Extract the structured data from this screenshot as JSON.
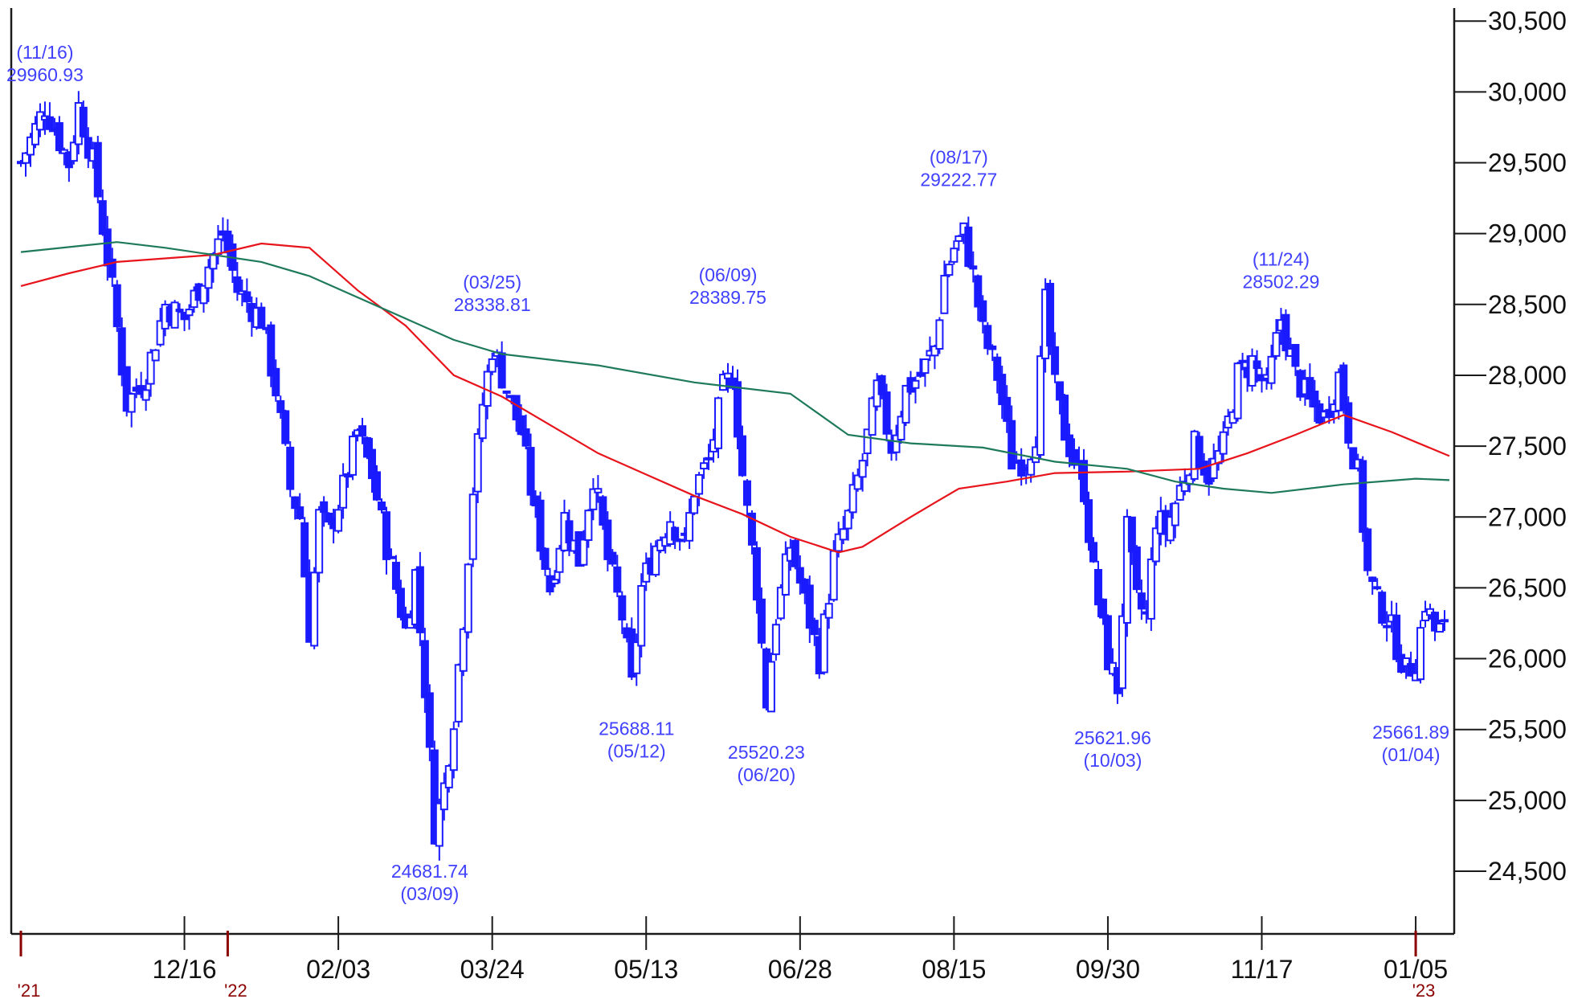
{
  "chart_data": {
    "type": "candlestick",
    "title": "",
    "xlabel": "",
    "ylabel": "",
    "ylim": [
      24000,
      30600
    ],
    "y_ticks": [
      24500,
      25000,
      25500,
      26000,
      26500,
      27000,
      27500,
      28000,
      28500,
      29000,
      29500,
      30000,
      30500
    ],
    "y_tick_labels": [
      "24,500",
      "25,000",
      "25,500",
      "26,000",
      "26,500",
      "27,000",
      "27,500",
      "28,000",
      "28,500",
      "29,000",
      "29,500",
      "30,000",
      "30,500"
    ],
    "x_ticks": [
      {
        "label": "12/16",
        "idx": 34
      },
      {
        "label": "02/03",
        "idx": 66
      },
      {
        "label": "03/24",
        "idx": 98
      },
      {
        "label": "05/13",
        "idx": 130
      },
      {
        "label": "06/28",
        "idx": 162
      },
      {
        "label": "08/15",
        "idx": 194
      },
      {
        "label": "09/30",
        "idx": 226
      },
      {
        "label": "11/17",
        "idx": 258
      },
      {
        "label": "01/05",
        "idx": 290
      }
    ],
    "year_markers": [
      {
        "label": "'21",
        "idx": 0
      },
      {
        "label": "'22",
        "idx": 43
      },
      {
        "label": "'23",
        "idx": 290
      }
    ],
    "num_bars": 297,
    "annotations": [
      {
        "date": "(11/16)",
        "value": "29960.93",
        "idx": 5,
        "price": 29960.93,
        "pos": "above"
      },
      {
        "date": "(03/09)",
        "value": "24681.74",
        "idx": 85,
        "price": 24681.74,
        "pos": "below"
      },
      {
        "date": "(03/25)",
        "value": "28338.81",
        "idx": 98,
        "price": 28338.81,
        "pos": "above"
      },
      {
        "date": "(05/12)",
        "value": "25688.11",
        "idx": 128,
        "price": 25688.11,
        "pos": "below"
      },
      {
        "date": "(06/09)",
        "value": "28389.75",
        "idx": 147,
        "price": 28389.75,
        "pos": "above"
      },
      {
        "date": "(06/20)",
        "value": "25520.23",
        "idx": 155,
        "price": 25520.23,
        "pos": "below"
      },
      {
        "date": "(08/17)",
        "value": "29222.77",
        "idx": 195,
        "price": 29222.77,
        "pos": "above"
      },
      {
        "date": "(10/03)",
        "value": "25621.96",
        "idx": 227,
        "price": 25621.96,
        "pos": "below"
      },
      {
        "date": "(11/24)",
        "value": "28502.29",
        "idx": 262,
        "price": 28502.29,
        "pos": "above"
      },
      {
        "date": "(01/04)",
        "value": "25661.89",
        "idx": 289,
        "price": 25661.89,
        "pos": "below"
      }
    ],
    "close_path": [
      [
        0,
        29500
      ],
      [
        5,
        29900
      ],
      [
        10,
        29500
      ],
      [
        12,
        29900
      ],
      [
        15,
        29500
      ],
      [
        19,
        28600
      ],
      [
        22,
        27800
      ],
      [
        26,
        28000
      ],
      [
        30,
        28500
      ],
      [
        34,
        28400
      ],
      [
        38,
        28700
      ],
      [
        42,
        29000
      ],
      [
        45,
        28600
      ],
      [
        50,
        28400
      ],
      [
        53,
        27900
      ],
      [
        56,
        27200
      ],
      [
        58,
        27000
      ],
      [
        60,
        26200
      ],
      [
        62,
        27000
      ],
      [
        64,
        26900
      ],
      [
        67,
        27200
      ],
      [
        70,
        27600
      ],
      [
        73,
        27300
      ],
      [
        76,
        26800
      ],
      [
        78,
        26500
      ],
      [
        80,
        26200
      ],
      [
        82,
        26600
      ],
      [
        84,
        25800
      ],
      [
        86,
        24800
      ],
      [
        88,
        25100
      ],
      [
        90,
        25600
      ],
      [
        92,
        26300
      ],
      [
        94,
        27200
      ],
      [
        96,
        27800
      ],
      [
        98,
        28200
      ],
      [
        101,
        27900
      ],
      [
        104,
        27600
      ],
      [
        107,
        27000
      ],
      [
        110,
        26500
      ],
      [
        113,
        27000
      ],
      [
        116,
        26700
      ],
      [
        119,
        27300
      ],
      [
        122,
        26700
      ],
      [
        125,
        26300
      ],
      [
        127,
        25800
      ],
      [
        129,
        26500
      ],
      [
        132,
        26800
      ],
      [
        135,
        27000
      ],
      [
        138,
        26800
      ],
      [
        140,
        27200
      ],
      [
        143,
        27400
      ],
      [
        146,
        27900
      ],
      [
        148,
        28000
      ],
      [
        150,
        27300
      ],
      [
        153,
        26500
      ],
      [
        155,
        25700
      ],
      [
        157,
        26300
      ],
      [
        160,
        26800
      ],
      [
        163,
        26400
      ],
      [
        166,
        26000
      ],
      [
        169,
        26700
      ],
      [
        172,
        27000
      ],
      [
        175,
        27400
      ],
      [
        178,
        27900
      ],
      [
        181,
        27500
      ],
      [
        184,
        27900
      ],
      [
        187,
        28000
      ],
      [
        190,
        28200
      ],
      [
        192,
        28700
      ],
      [
        194,
        28900
      ],
      [
        196,
        29000
      ],
      [
        198,
        28700
      ],
      [
        200,
        28300
      ],
      [
        203,
        28000
      ],
      [
        206,
        27400
      ],
      [
        209,
        27400
      ],
      [
        211,
        27600
      ],
      [
        213,
        28500
      ],
      [
        215,
        27900
      ],
      [
        217,
        27600
      ],
      [
        219,
        27400
      ],
      [
        221,
        27200
      ],
      [
        223,
        26600
      ],
      [
        226,
        26000
      ],
      [
        228,
        25800
      ],
      [
        230,
        26900
      ],
      [
        232,
        26400
      ],
      [
        234,
        26300
      ],
      [
        236,
        27000
      ],
      [
        238,
        26900
      ],
      [
        241,
        27200
      ],
      [
        244,
        27500
      ],
      [
        247,
        27300
      ],
      [
        250,
        27500
      ],
      [
        253,
        28000
      ],
      [
        256,
        28100
      ],
      [
        259,
        27900
      ],
      [
        262,
        28400
      ],
      [
        265,
        28000
      ],
      [
        268,
        27800
      ],
      [
        271,
        27700
      ],
      [
        274,
        28000
      ],
      [
        276,
        27600
      ],
      [
        278,
        27300
      ],
      [
        280,
        26600
      ],
      [
        282,
        26400
      ],
      [
        284,
        26300
      ],
      [
        286,
        26100
      ],
      [
        288,
        25900
      ],
      [
        290,
        26000
      ],
      [
        292,
        26400
      ],
      [
        294,
        26200
      ]
    ],
    "series": [
      {
        "type": "line",
        "color": "#e8141c",
        "points": [
          [
            0,
            28630
          ],
          [
            10,
            28720
          ],
          [
            20,
            28800
          ],
          [
            40,
            28850
          ],
          [
            50,
            28930
          ],
          [
            60,
            28900
          ],
          [
            70,
            28600
          ],
          [
            80,
            28350
          ],
          [
            90,
            28000
          ],
          [
            100,
            27850
          ],
          [
            110,
            27650
          ],
          [
            120,
            27450
          ],
          [
            130,
            27300
          ],
          [
            140,
            27150
          ],
          [
            150,
            27020
          ],
          [
            160,
            26860
          ],
          [
            170,
            26750
          ],
          [
            175,
            26790
          ],
          [
            185,
            27000
          ],
          [
            190,
            27100
          ],
          [
            195,
            27200
          ],
          [
            205,
            27250
          ],
          [
            215,
            27310
          ],
          [
            230,
            27320
          ],
          [
            245,
            27340
          ],
          [
            255,
            27450
          ],
          [
            265,
            27580
          ],
          [
            275,
            27720
          ],
          [
            285,
            27600
          ],
          [
            297,
            27430
          ]
        ]
      },
      {
        "type": "line",
        "color": "#1e7a5a",
        "points": [
          [
            0,
            28870
          ],
          [
            20,
            28940
          ],
          [
            30,
            28900
          ],
          [
            50,
            28800
          ],
          [
            60,
            28700
          ],
          [
            70,
            28550
          ],
          [
            80,
            28400
          ],
          [
            90,
            28250
          ],
          [
            100,
            28150
          ],
          [
            120,
            28070
          ],
          [
            140,
            27950
          ],
          [
            160,
            27870
          ],
          [
            172,
            27580
          ],
          [
            185,
            27520
          ],
          [
            200,
            27490
          ],
          [
            215,
            27390
          ],
          [
            230,
            27340
          ],
          [
            240,
            27250
          ],
          [
            250,
            27200
          ],
          [
            260,
            27170
          ],
          [
            275,
            27230
          ],
          [
            290,
            27270
          ],
          [
            297,
            27260
          ]
        ]
      }
    ]
  }
}
